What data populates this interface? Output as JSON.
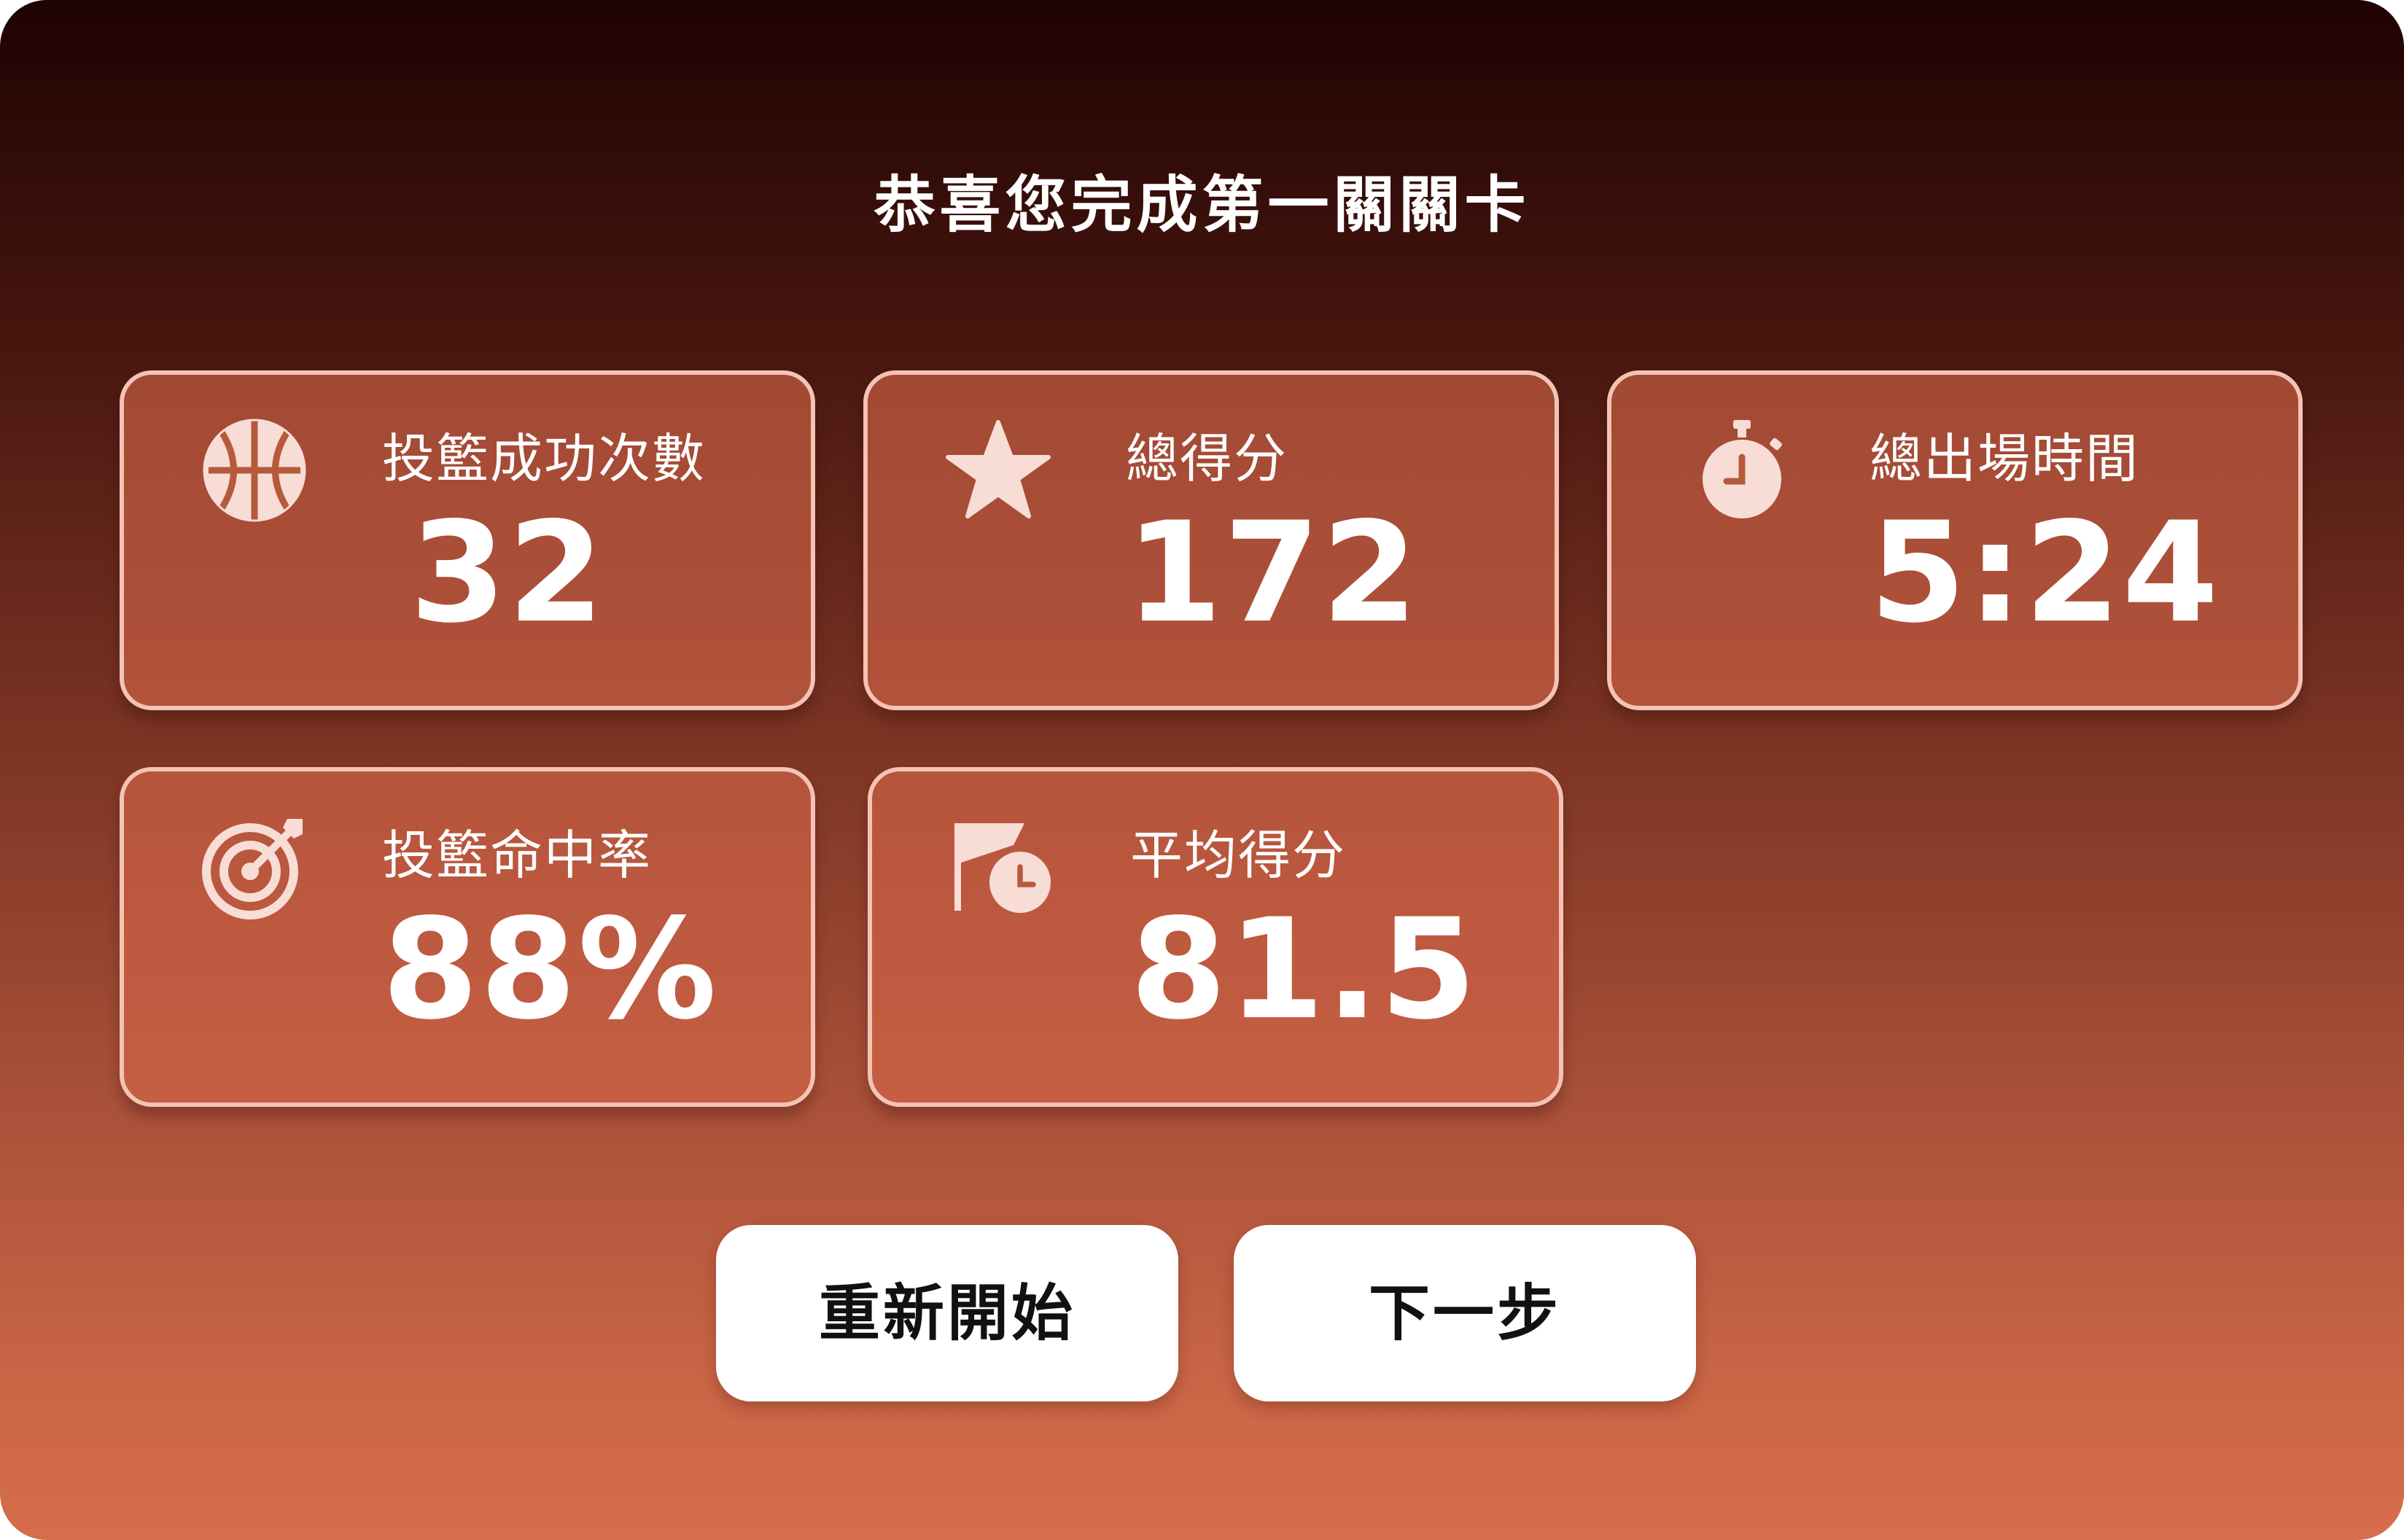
{
  "title": "恭喜您完成第一關關卡",
  "stats": [
    {
      "icon": "basketball-icon",
      "label": "投籃成功次數",
      "value": "32"
    },
    {
      "icon": "star-icon",
      "label": "總得分",
      "value": "172"
    },
    {
      "icon": "stopwatch-icon",
      "label": "總出場時間",
      "value": "5:24"
    },
    {
      "icon": "target-icon",
      "label": "投籃命中率",
      "value": "88%"
    },
    {
      "icon": "flag-clock-icon",
      "label": "平均得分",
      "value": "81.5"
    }
  ],
  "buttons": {
    "restart": "重新開始",
    "next": "下一步"
  },
  "colors": {
    "background_top": "#1f0303",
    "background_bottom": "#d66d4c",
    "card_fill": "#c8603f",
    "card_border": "#f4c3b4",
    "icon": "#f7ddd5",
    "button": "#ffffff",
    "button_text": "#111111"
  }
}
